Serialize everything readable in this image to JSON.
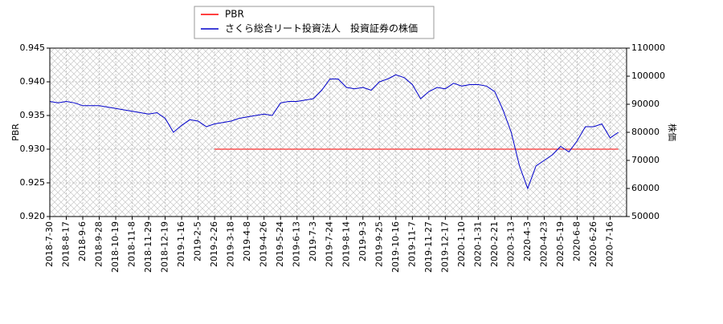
{
  "chart_data": {
    "type": "line",
    "x": [
      "2018-7-30",
      null,
      "2018-8-17",
      null,
      "2018-9-6",
      null,
      "2018-9-28",
      null,
      "2018-10-19",
      null,
      "2018-11-8",
      null,
      "2018-11-29",
      null,
      "2018-12-19",
      null,
      "2019-1-16",
      null,
      "2019-2-5",
      null,
      "2019-2-26",
      null,
      "2019-3-18",
      null,
      "2019-4-8",
      null,
      "2019-4-26",
      null,
      "2019-5-24",
      null,
      "2019-6-13",
      null,
      "2019-7-3",
      null,
      "2019-7-24",
      null,
      "2019-8-14",
      null,
      "2019-9-3",
      null,
      "2019-9-25",
      null,
      "2019-10-16",
      null,
      "2019-11-7",
      null,
      "2019-11-27",
      null,
      "2019-12-17",
      null,
      "2020-1-10",
      null,
      "2020-1-31",
      null,
      "2020-2-21",
      null,
      "2020-3-13",
      null,
      "2020-4-3",
      null,
      "2020-4-23",
      null,
      "2020-5-19",
      null,
      "2020-6-8",
      null,
      "2020-6-26",
      null,
      "2020-7-16",
      null
    ],
    "series": [
      {
        "name": "PBR",
        "color": "#ff0000",
        "values": [
          null,
          null,
          null,
          null,
          null,
          null,
          null,
          null,
          null,
          null,
          null,
          null,
          null,
          null,
          null,
          null,
          null,
          null,
          null,
          null,
          0.93,
          0.93,
          0.93,
          0.93,
          0.93,
          0.93,
          0.93,
          0.93,
          0.93,
          0.93,
          0.93,
          0.93,
          0.93,
          0.93,
          0.93,
          0.93,
          0.93,
          0.93,
          0.93,
          0.93,
          0.93,
          0.93,
          0.93,
          0.93,
          0.93,
          0.93,
          0.93,
          0.93,
          0.93,
          0.93,
          0.93,
          0.93,
          0.93,
          0.93,
          0.93,
          0.93,
          0.93,
          0.93,
          0.93,
          0.93,
          0.93,
          0.93,
          0.93,
          0.93,
          0.93,
          0.93,
          0.93,
          0.93,
          0.93,
          0.93
        ]
      },
      {
        "name": "さくら総合リート投資法人　投資証券の株価",
        "color": "#0000cc",
        "axis": "y2",
        "values": [
          91000,
          90500,
          91000,
          90500,
          89500,
          89500,
          89500,
          89000,
          88500,
          88000,
          87500,
          87000,
          86500,
          87000,
          85000,
          80000,
          82500,
          84500,
          84000,
          82000,
          83000,
          83500,
          84000,
          85000,
          85500,
          86000,
          86500,
          86000,
          90500,
          91000,
          91000,
          91500,
          92000,
          95000,
          99000,
          99000,
          96000,
          95500,
          96000,
          95000,
          98000,
          99000,
          100500,
          99500,
          97000,
          92000,
          94500,
          96000,
          95500,
          97500,
          96500,
          97000,
          97000,
          96500,
          94500,
          88000,
          80000,
          68000,
          60000,
          68000,
          70000,
          72000,
          75000,
          73000,
          77000,
          82000,
          82000,
          83000,
          78000,
          80000
        ]
      }
    ],
    "ylim": [
      0.92,
      0.945
    ],
    "yticks": [
      {
        "value": 0.92,
        "label": "0.920"
      },
      0.925,
      {
        "value": 0.93,
        "label": "0.930"
      },
      0.935,
      {
        "value": 0.94,
        "label": "0.940"
      },
      0.945
    ],
    "y2lim": [
      50000,
      110000
    ],
    "y2ticks": [
      50000,
      60000,
      70000,
      80000,
      90000,
      100000,
      110000
    ],
    "y_label": "PBR",
    "y2_label": "株価",
    "grid": true,
    "legend": "upper center"
  }
}
